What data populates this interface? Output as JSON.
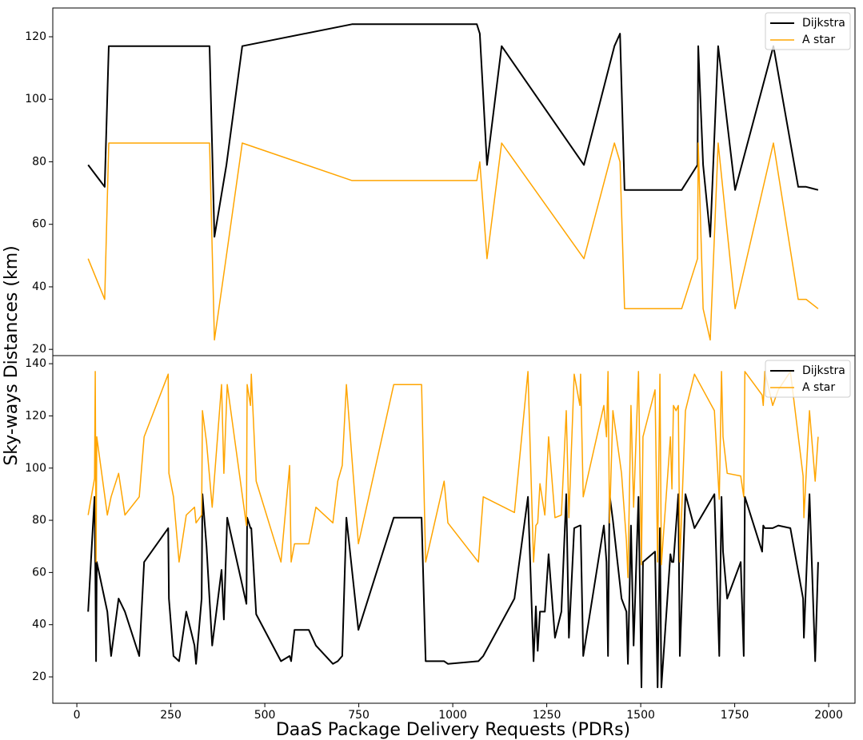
{
  "chart_data": [
    {
      "type": "line",
      "ylabel": "Sky-ways Distances (km)",
      "x": [
        30,
        74,
        85,
        353,
        366,
        398,
        440,
        732,
        1064,
        1072,
        1091,
        1130,
        1349,
        1430,
        1445,
        1457,
        1609,
        1651,
        1653,
        1666,
        1685,
        1706,
        1751,
        1853,
        1919,
        1940,
        1972
      ],
      "series": [
        {
          "name": "Dijkstra",
          "color": "#000000",
          "values": [
            79,
            72,
            117,
            117,
            56,
            79,
            117,
            124,
            124,
            121,
            79,
            117,
            79,
            117,
            121,
            71,
            71,
            79,
            117,
            79,
            56,
            117,
            71,
            117,
            72,
            72,
            71
          ]
        },
        {
          "name": "A star",
          "color": "#ffa500",
          "values": [
            49,
            36,
            86,
            86,
            23,
            50,
            86,
            74,
            74,
            80,
            49,
            86,
            49,
            86,
            80,
            33,
            33,
            49,
            86,
            33,
            23,
            86,
            33,
            86,
            36,
            36,
            33
          ]
        }
      ],
      "xlim": [
        -64,
        2070
      ],
      "ylim": [
        18,
        129.2
      ],
      "yticks": [
        20,
        40,
        60,
        80,
        100,
        120
      ],
      "legend": "upper right"
    },
    {
      "type": "line",
      "xlabel": "DaaS Package Delivery Requests (PDRs)",
      "x": [
        30,
        47,
        49,
        51,
        53,
        81,
        91,
        111,
        128,
        166,
        179,
        243,
        245,
        257,
        272,
        291,
        313,
        317,
        332,
        334,
        345,
        360,
        385,
        391,
        400,
        451,
        453,
        462,
        464,
        477,
        543,
        566,
        570,
        579,
        617,
        636,
        681,
        694,
        706,
        717,
        749,
        843,
        917,
        928,
        977,
        987,
        1068,
        1081,
        1164,
        1200,
        1215,
        1221,
        1226,
        1232,
        1245,
        1255,
        1272,
        1289,
        1302,
        1309,
        1323,
        1338,
        1340,
        1347,
        1402,
        1409,
        1413,
        1417,
        1426,
        1449,
        1462,
        1466,
        1474,
        1481,
        1494,
        1502,
        1506,
        1538,
        1545,
        1551,
        1555,
        1579,
        1583,
        1587,
        1594,
        1600,
        1604,
        1619,
        1643,
        1696,
        1709,
        1715,
        1719,
        1730,
        1766,
        1774,
        1777,
        1823,
        1826,
        1830,
        1851,
        1866,
        1898,
        1932,
        1934,
        1949,
        1964,
        1972
      ],
      "series": [
        {
          "name": "Dijkstra",
          "color": "#000000",
          "values": [
            45,
            89,
            64,
            26,
            64,
            45,
            28,
            50,
            45,
            28,
            64,
            77,
            50,
            28,
            26,
            45,
            32,
            25,
            50,
            90,
            70,
            32,
            61,
            42,
            81,
            48,
            81,
            77,
            77,
            44,
            26,
            28,
            26,
            38,
            38,
            32,
            25,
            26,
            28,
            81,
            38,
            81,
            81,
            26,
            26,
            25,
            26,
            28,
            50,
            89,
            26,
            47,
            30,
            45,
            45,
            67,
            35,
            45,
            90,
            35,
            77,
            78,
            78,
            28,
            78,
            64,
            28,
            90,
            80,
            50,
            45,
            25,
            78,
            32,
            89,
            16,
            64,
            68,
            16,
            77,
            16,
            67,
            64,
            64,
            78,
            90,
            28,
            90,
            77,
            90,
            28,
            89,
            68,
            50,
            64,
            28,
            89,
            68,
            78,
            77,
            77,
            78,
            77,
            50,
            35,
            90,
            26,
            64
          ]
        },
        {
          "name": "A star",
          "color": "#ffa500",
          "values": [
            82,
            96,
            137,
            64,
            112,
            82,
            89,
            98,
            82,
            89,
            112,
            136,
            98,
            89,
            64,
            82,
            85,
            79,
            82,
            122,
            110,
            85,
            132,
            98,
            132,
            78,
            132,
            124,
            136,
            95,
            64,
            101,
            64,
            71,
            71,
            85,
            79,
            95,
            101,
            132,
            71,
            132,
            132,
            64,
            95,
            79,
            64,
            89,
            83,
            137,
            64,
            78,
            79,
            94,
            82,
            112,
            81,
            82,
            122,
            81,
            136,
            124,
            136,
            89,
            124,
            112,
            137,
            79,
            122,
            98,
            72,
            58,
            124,
            85,
            137,
            63,
            112,
            130,
            64,
            136,
            63,
            112,
            92,
            124,
            122,
            124,
            64,
            122,
            136,
            122,
            88,
            137,
            112,
            98,
            97,
            89,
            137,
            128,
            124,
            137,
            124,
            130,
            137,
            97,
            81,
            122,
            95,
            112
          ]
        }
      ],
      "xlim": [
        -64,
        2070
      ],
      "ylim": [
        9.9,
        143.1
      ],
      "xticks": [
        0,
        250,
        500,
        750,
        1000,
        1250,
        1500,
        1750,
        2000
      ],
      "yticks": [
        20,
        40,
        60,
        80,
        100,
        120,
        140
      ],
      "legend": "upper right"
    }
  ]
}
